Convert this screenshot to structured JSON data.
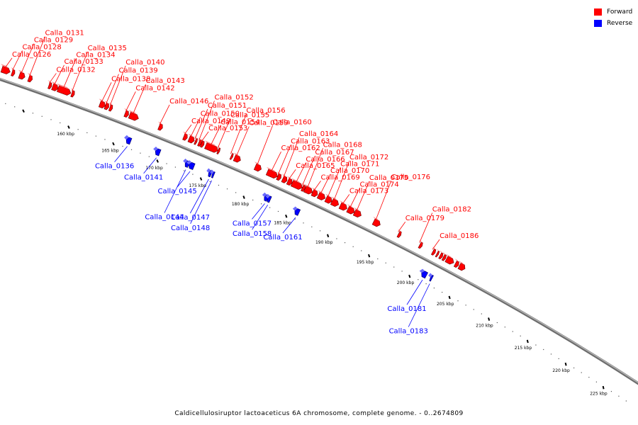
{
  "legend": {
    "forward_label": "Forward",
    "reverse_label": "Reverse",
    "forward_color": "#ff0000",
    "reverse_color": "#0000ff"
  },
  "caption": "Caldicellulosiruptor lactoaceticus 6A chromosome, complete genome. - 0..2674809",
  "axis": {
    "start_kbp": 151.2,
    "end_kbp": 228.6,
    "tick_labels": [
      "160 kbp",
      "165 kbp",
      "170 kbp",
      "175 kbp",
      "180 kbp",
      "185 kbp",
      "190 kbp",
      "195 kbp",
      "200 kbp",
      "205 kbp",
      "210 kbp",
      "215 kbp",
      "220 kbp",
      "225 kbp"
    ]
  },
  "genes": [
    {
      "name": "Calla_0126",
      "strand": "forward",
      "start_kbp": 151.5,
      "end_kbp": 152.4
    },
    {
      "name": "Calla_0128",
      "strand": "forward",
      "start_kbp": 152.6,
      "end_kbp": 152.9
    },
    {
      "name": "Calla_0129",
      "strand": "forward",
      "start_kbp": 153.4,
      "end_kbp": 154.0
    },
    {
      "name": "Calla_0131",
      "strand": "forward",
      "start_kbp": 154.4,
      "end_kbp": 154.8
    },
    {
      "name": "Calla_0132",
      "strand": "forward",
      "start_kbp": 156.6,
      "end_kbp": 156.9
    },
    {
      "name": "Calla_0133",
      "strand": "forward",
      "start_kbp": 157.0,
      "end_kbp": 157.6
    },
    {
      "name": "Calla_0134",
      "strand": "forward",
      "start_kbp": 157.6,
      "end_kbp": 159.0
    },
    {
      "name": "Calla_0135",
      "strand": "forward",
      "start_kbp": 159.1,
      "end_kbp": 159.4
    },
    {
      "name": "Calla_0136",
      "strand": "reverse",
      "start_kbp": 166.1,
      "end_kbp": 166.6
    },
    {
      "name": "Calla_0138",
      "strand": "forward",
      "start_kbp": 162.2,
      "end_kbp": 162.8
    },
    {
      "name": "Calla_0139",
      "strand": "forward",
      "start_kbp": 162.8,
      "end_kbp": 163.2
    },
    {
      "name": "Calla_0140",
      "strand": "forward",
      "start_kbp": 163.3,
      "end_kbp": 163.6
    },
    {
      "name": "Calla_0141",
      "strand": "reverse",
      "start_kbp": 169.4,
      "end_kbp": 169.9
    },
    {
      "name": "Calla_0142",
      "strand": "forward",
      "start_kbp": 165.0,
      "end_kbp": 165.4
    },
    {
      "name": "Calla_0143",
      "strand": "forward",
      "start_kbp": 165.5,
      "end_kbp": 166.5
    },
    {
      "name": "Calla_0144",
      "strand": "reverse",
      "start_kbp": 172.8,
      "end_kbp": 173.2
    },
    {
      "name": "Calla_0145",
      "strand": "reverse",
      "start_kbp": 173.2,
      "end_kbp": 173.8
    },
    {
      "name": "Calla_0146",
      "strand": "forward",
      "start_kbp": 168.8,
      "end_kbp": 169.2
    },
    {
      "name": "Calla_0147",
      "strand": "reverse",
      "start_kbp": 175.5,
      "end_kbp": 175.8
    },
    {
      "name": "Calla_0148",
      "strand": "reverse",
      "start_kbp": 175.9,
      "end_kbp": 176.1
    },
    {
      "name": "Calla_0149",
      "strand": "forward",
      "start_kbp": 171.6,
      "end_kbp": 172.0
    },
    {
      "name": "Calla_0150",
      "strand": "forward",
      "start_kbp": 172.2,
      "end_kbp": 172.8
    },
    {
      "name": "Calla_0151",
      "strand": "forward",
      "start_kbp": 172.9,
      "end_kbp": 173.1
    },
    {
      "name": "Calla_0152",
      "strand": "forward",
      "start_kbp": 173.3,
      "end_kbp": 173.6
    },
    {
      "name": "Calla_0153",
      "strand": "forward",
      "start_kbp": 173.6,
      "end_kbp": 173.9
    },
    {
      "name": "Calla_0154",
      "strand": "forward",
      "start_kbp": 174.1,
      "end_kbp": 175.5
    },
    {
      "name": "Calla_0155",
      "strand": "forward",
      "start_kbp": 175.5,
      "end_kbp": 175.7
    },
    {
      "name": "Calla_0156",
      "strand": "forward",
      "start_kbp": 177.0,
      "end_kbp": 177.2
    },
    {
      "name": "Calla_0157",
      "strand": "reverse",
      "start_kbp": 182.0,
      "end_kbp": 182.4
    },
    {
      "name": "Calla_0158",
      "strand": "reverse",
      "start_kbp": 182.4,
      "end_kbp": 182.7
    },
    {
      "name": "Calla_0159",
      "strand": "forward",
      "start_kbp": 177.4,
      "end_kbp": 178.1
    },
    {
      "name": "Calla_0160",
      "strand": "forward",
      "start_kbp": 179.8,
      "end_kbp": 180.5
    },
    {
      "name": "Calla_0161",
      "strand": "reverse",
      "start_kbp": 185.6,
      "end_kbp": 186.1
    },
    {
      "name": "Calla_0162",
      "strand": "forward",
      "start_kbp": 181.2,
      "end_kbp": 182.4
    },
    {
      "name": "Calla_0163",
      "strand": "forward",
      "start_kbp": 182.4,
      "end_kbp": 182.8
    },
    {
      "name": "Calla_0164",
      "strand": "forward",
      "start_kbp": 183.0,
      "end_kbp": 183.5
    },
    {
      "name": "Calla_0165",
      "strand": "forward",
      "start_kbp": 183.6,
      "end_kbp": 184.1
    },
    {
      "name": "Calla_0166",
      "strand": "forward",
      "start_kbp": 184.1,
      "end_kbp": 185.3
    },
    {
      "name": "Calla_0167",
      "strand": "forward",
      "start_kbp": 185.3,
      "end_kbp": 185.6
    },
    {
      "name": "Calla_0168",
      "strand": "forward",
      "start_kbp": 185.6,
      "end_kbp": 186.5
    },
    {
      "name": "Calla_0169",
      "strand": "forward",
      "start_kbp": 186.5,
      "end_kbp": 187.1
    },
    {
      "name": "Calla_0170",
      "strand": "forward",
      "start_kbp": 187.2,
      "end_kbp": 188.0
    },
    {
      "name": "Calla_0171",
      "strand": "forward",
      "start_kbp": 188.1,
      "end_kbp": 188.8
    },
    {
      "name": "Calla_0172",
      "strand": "forward",
      "start_kbp": 188.8,
      "end_kbp": 189.6
    },
    {
      "name": "Calla_0173",
      "strand": "forward",
      "start_kbp": 189.8,
      "end_kbp": 190.6
    },
    {
      "name": "Calla_0174",
      "strand": "forward",
      "start_kbp": 190.7,
      "end_kbp": 191.5
    },
    {
      "name": "Calla_0175",
      "strand": "forward",
      "start_kbp": 191.5,
      "end_kbp": 192.3
    },
    {
      "name": "Calla_0176",
      "strand": "forward",
      "start_kbp": 193.8,
      "end_kbp": 194.6
    },
    {
      "name": "Calla_0179",
      "strand": "forward",
      "start_kbp": 196.8,
      "end_kbp": 197.1
    },
    {
      "name": "Calla_0181",
      "strand": "reverse",
      "start_kbp": 201.0,
      "end_kbp": 201.6
    },
    {
      "name": "Calla_0182",
      "strand": "forward",
      "start_kbp": 199.4,
      "end_kbp": 199.7
    },
    {
      "name": "Calla_0183",
      "strand": "reverse",
      "start_kbp": 202.1,
      "end_kbp": 202.3
    },
    {
      "name": "Calla_0186",
      "strand": "forward",
      "start_kbp": 201.0,
      "end_kbp": 201.3
    }
  ],
  "extra_genes": [
    {
      "strand": "forward",
      "start_kbp": 201.5,
      "end_kbp": 201.7
    },
    {
      "strand": "forward",
      "start_kbp": 201.9,
      "end_kbp": 202.2
    },
    {
      "strand": "forward",
      "start_kbp": 202.3,
      "end_kbp": 202.6
    },
    {
      "strand": "forward",
      "start_kbp": 202.7,
      "end_kbp": 203.6
    },
    {
      "strand": "forward",
      "start_kbp": 203.8,
      "end_kbp": 204.2
    },
    {
      "strand": "forward",
      "start_kbp": 204.3,
      "end_kbp": 205.0
    }
  ]
}
